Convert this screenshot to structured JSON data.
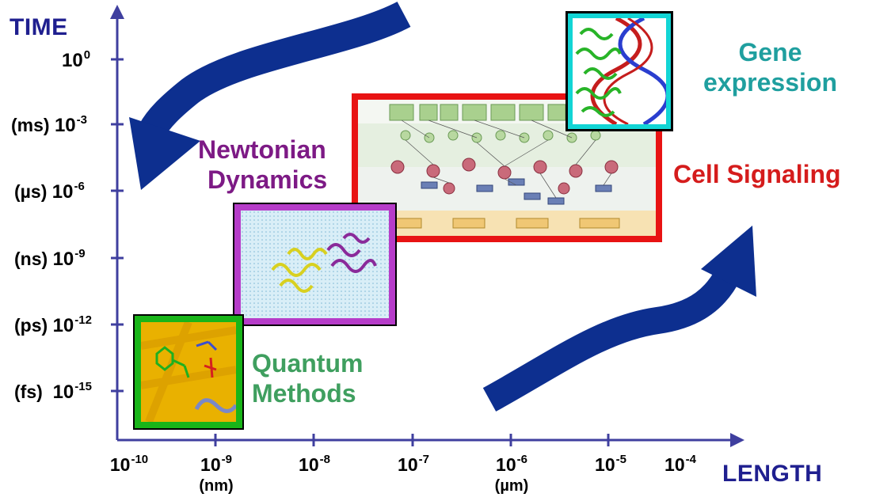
{
  "y_axis": {
    "title": "TIME",
    "ticks": [
      {
        "prefix": "",
        "base": "10",
        "exp": "0"
      },
      {
        "prefix": "(ms)",
        "base": "10",
        "exp": "-3"
      },
      {
        "prefix": "(µs)",
        "base": "10",
        "exp": "-6"
      },
      {
        "prefix": "(ns)",
        "base": "10",
        "exp": "-9"
      },
      {
        "prefix": "(ps)",
        "base": "10",
        "exp": "-12"
      },
      {
        "prefix": "(fs)",
        "base": "10",
        "exp": "-15"
      }
    ]
  },
  "x_axis": {
    "title": "LENGTH",
    "ticks": [
      {
        "base": "10",
        "exp": "-10",
        "sub": ""
      },
      {
        "base": "10",
        "exp": "-9",
        "sub": "(nm)"
      },
      {
        "base": "10",
        "exp": "-8",
        "sub": ""
      },
      {
        "base": "10",
        "exp": "-7",
        "sub": ""
      },
      {
        "base": "10",
        "exp": "-6",
        "sub": "(µm)"
      },
      {
        "base": "10",
        "exp": "-5",
        "sub": ""
      },
      {
        "base": "10",
        "exp": "-4",
        "sub": ""
      }
    ]
  },
  "labels": {
    "newtonian_line1": "Newtonian",
    "newtonian_line2": "Dynamics",
    "quantum_line1": "Quantum",
    "quantum_line2": "Methods",
    "cell_signaling": "Cell Signaling",
    "gene_line1": "Gene",
    "gene_line2": "expression"
  },
  "colors": {
    "axis": "#3f3f9f",
    "arrow": "#0d2f8f",
    "newtonian": "#7d1a85",
    "quantum": "#3f9f5f",
    "cell_signaling": "#d51c1c",
    "gene": "#1f9f9f",
    "panel_quantum_border": "#19b519",
    "panel_newtonian_border": "#b63cc9",
    "panel_cell_border": "#e81313",
    "panel_gene_border": "#12d5d5"
  }
}
